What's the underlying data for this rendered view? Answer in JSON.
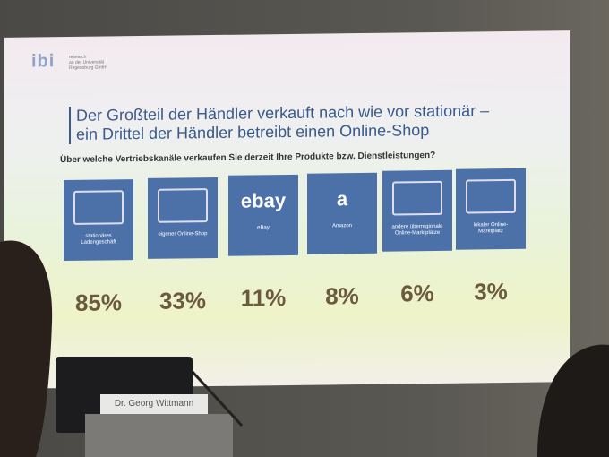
{
  "slide": {
    "logo": "ibi",
    "logo_caption": [
      "research",
      "an der Universität",
      "Regensburg GmbH"
    ],
    "title": [
      "Der Großteil der Händler verkauft nach wie vor stationär –",
      "ein Drittel der Händler betreibt einen Online-Shop"
    ],
    "question": "Über welche Vertriebskanäle verkaufen Sie derzeit Ihre Produkte bzw. Dienstleistungen?",
    "items": [
      {
        "label": "stationäres Ladengeschäft",
        "value": "85%"
      },
      {
        "label": "eigener Online-Shop",
        "value": "33%"
      },
      {
        "label": "eBay",
        "logo": "ebay",
        "value": "11%"
      },
      {
        "label": "Amazon",
        "logo": "a",
        "value": "8%"
      },
      {
        "label": "andere überregionale Online-Marktplätze",
        "value": "6%"
      },
      {
        "label": "lokaler Online-Marktplatz",
        "value": "3%"
      }
    ]
  },
  "nameplate": "Dr. Georg Wittmann"
}
